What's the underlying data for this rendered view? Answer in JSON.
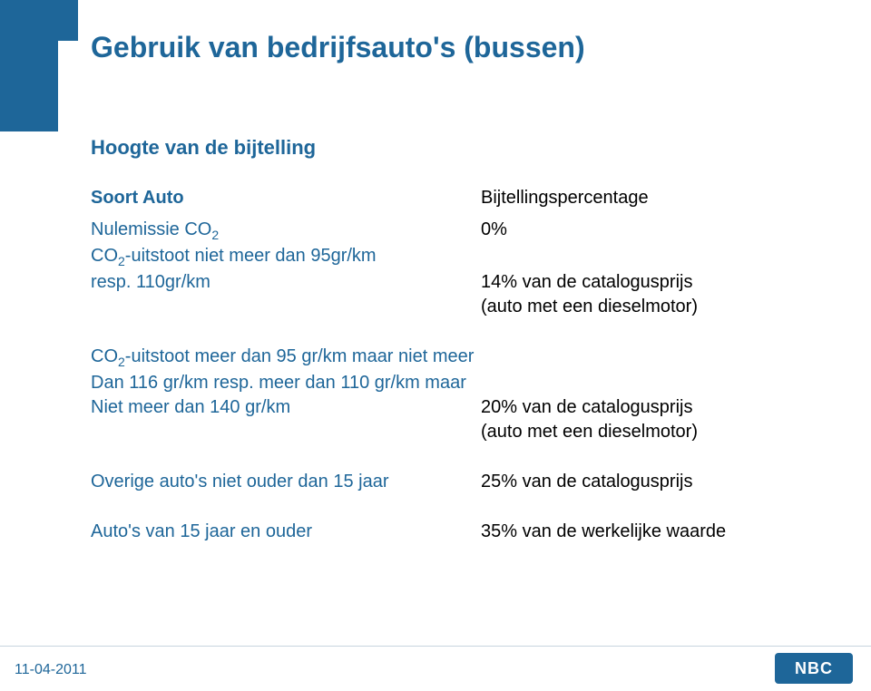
{
  "colors": {
    "accent": "#1e6699",
    "title": "#1e6699",
    "subtitle": "#1e6699",
    "leftcol": "#1e6699",
    "rightcol": "#000000",
    "footer_date": "#1e6699",
    "footer_line": "#c8d4de",
    "logo_bg": "#1e6699",
    "logo_text": "#ffffff",
    "background": "#ffffff"
  },
  "typography": {
    "title_fontsize": 32,
    "subtitle_fontsize": 22,
    "body_fontsize": 20,
    "footer_fontsize": 16,
    "title_weight": "bold",
    "subtitle_weight": "bold"
  },
  "title": "Gebruik van bedrijfsauto's (bussen)",
  "subtitle": "Hoogte van de bijtelling",
  "headers": {
    "left": "Soort Auto",
    "right": "Bijtellingspercentage"
  },
  "rows": [
    {
      "left_pre": "Nulemissie CO",
      "left_sub": "2",
      "left_post": "",
      "right": "0%"
    }
  ],
  "block2": {
    "left_line1_pre": "CO",
    "left_line1_sub": "2",
    "left_line1_post": "-uitstoot niet meer dan 95gr/km",
    "left_line2": "resp. 110gr/km",
    "right_line1": "14% van de catalogusprijs",
    "right_line2": "(auto met een dieselmotor)"
  },
  "block3": {
    "left_line1_pre": "CO",
    "left_line1_sub": "2",
    "left_line1_post": "-uitstoot meer dan 95 gr/km maar niet meer",
    "left_line2": "Dan 116 gr/km resp. meer dan 110 gr/km maar",
    "left_line3": "Niet meer dan 140 gr/km",
    "right_line1": "20% van de catalogusprijs",
    "right_line2": "(auto met een dieselmotor)"
  },
  "block4": {
    "left": "Overige auto's niet ouder dan 15 jaar",
    "right": "25% van de catalogusprijs"
  },
  "block5": {
    "left": "Auto's van 15 jaar en ouder",
    "right": "35% van de werkelijke waarde"
  },
  "footer": {
    "date": "11-04-2011",
    "logo_text": "NBC"
  }
}
